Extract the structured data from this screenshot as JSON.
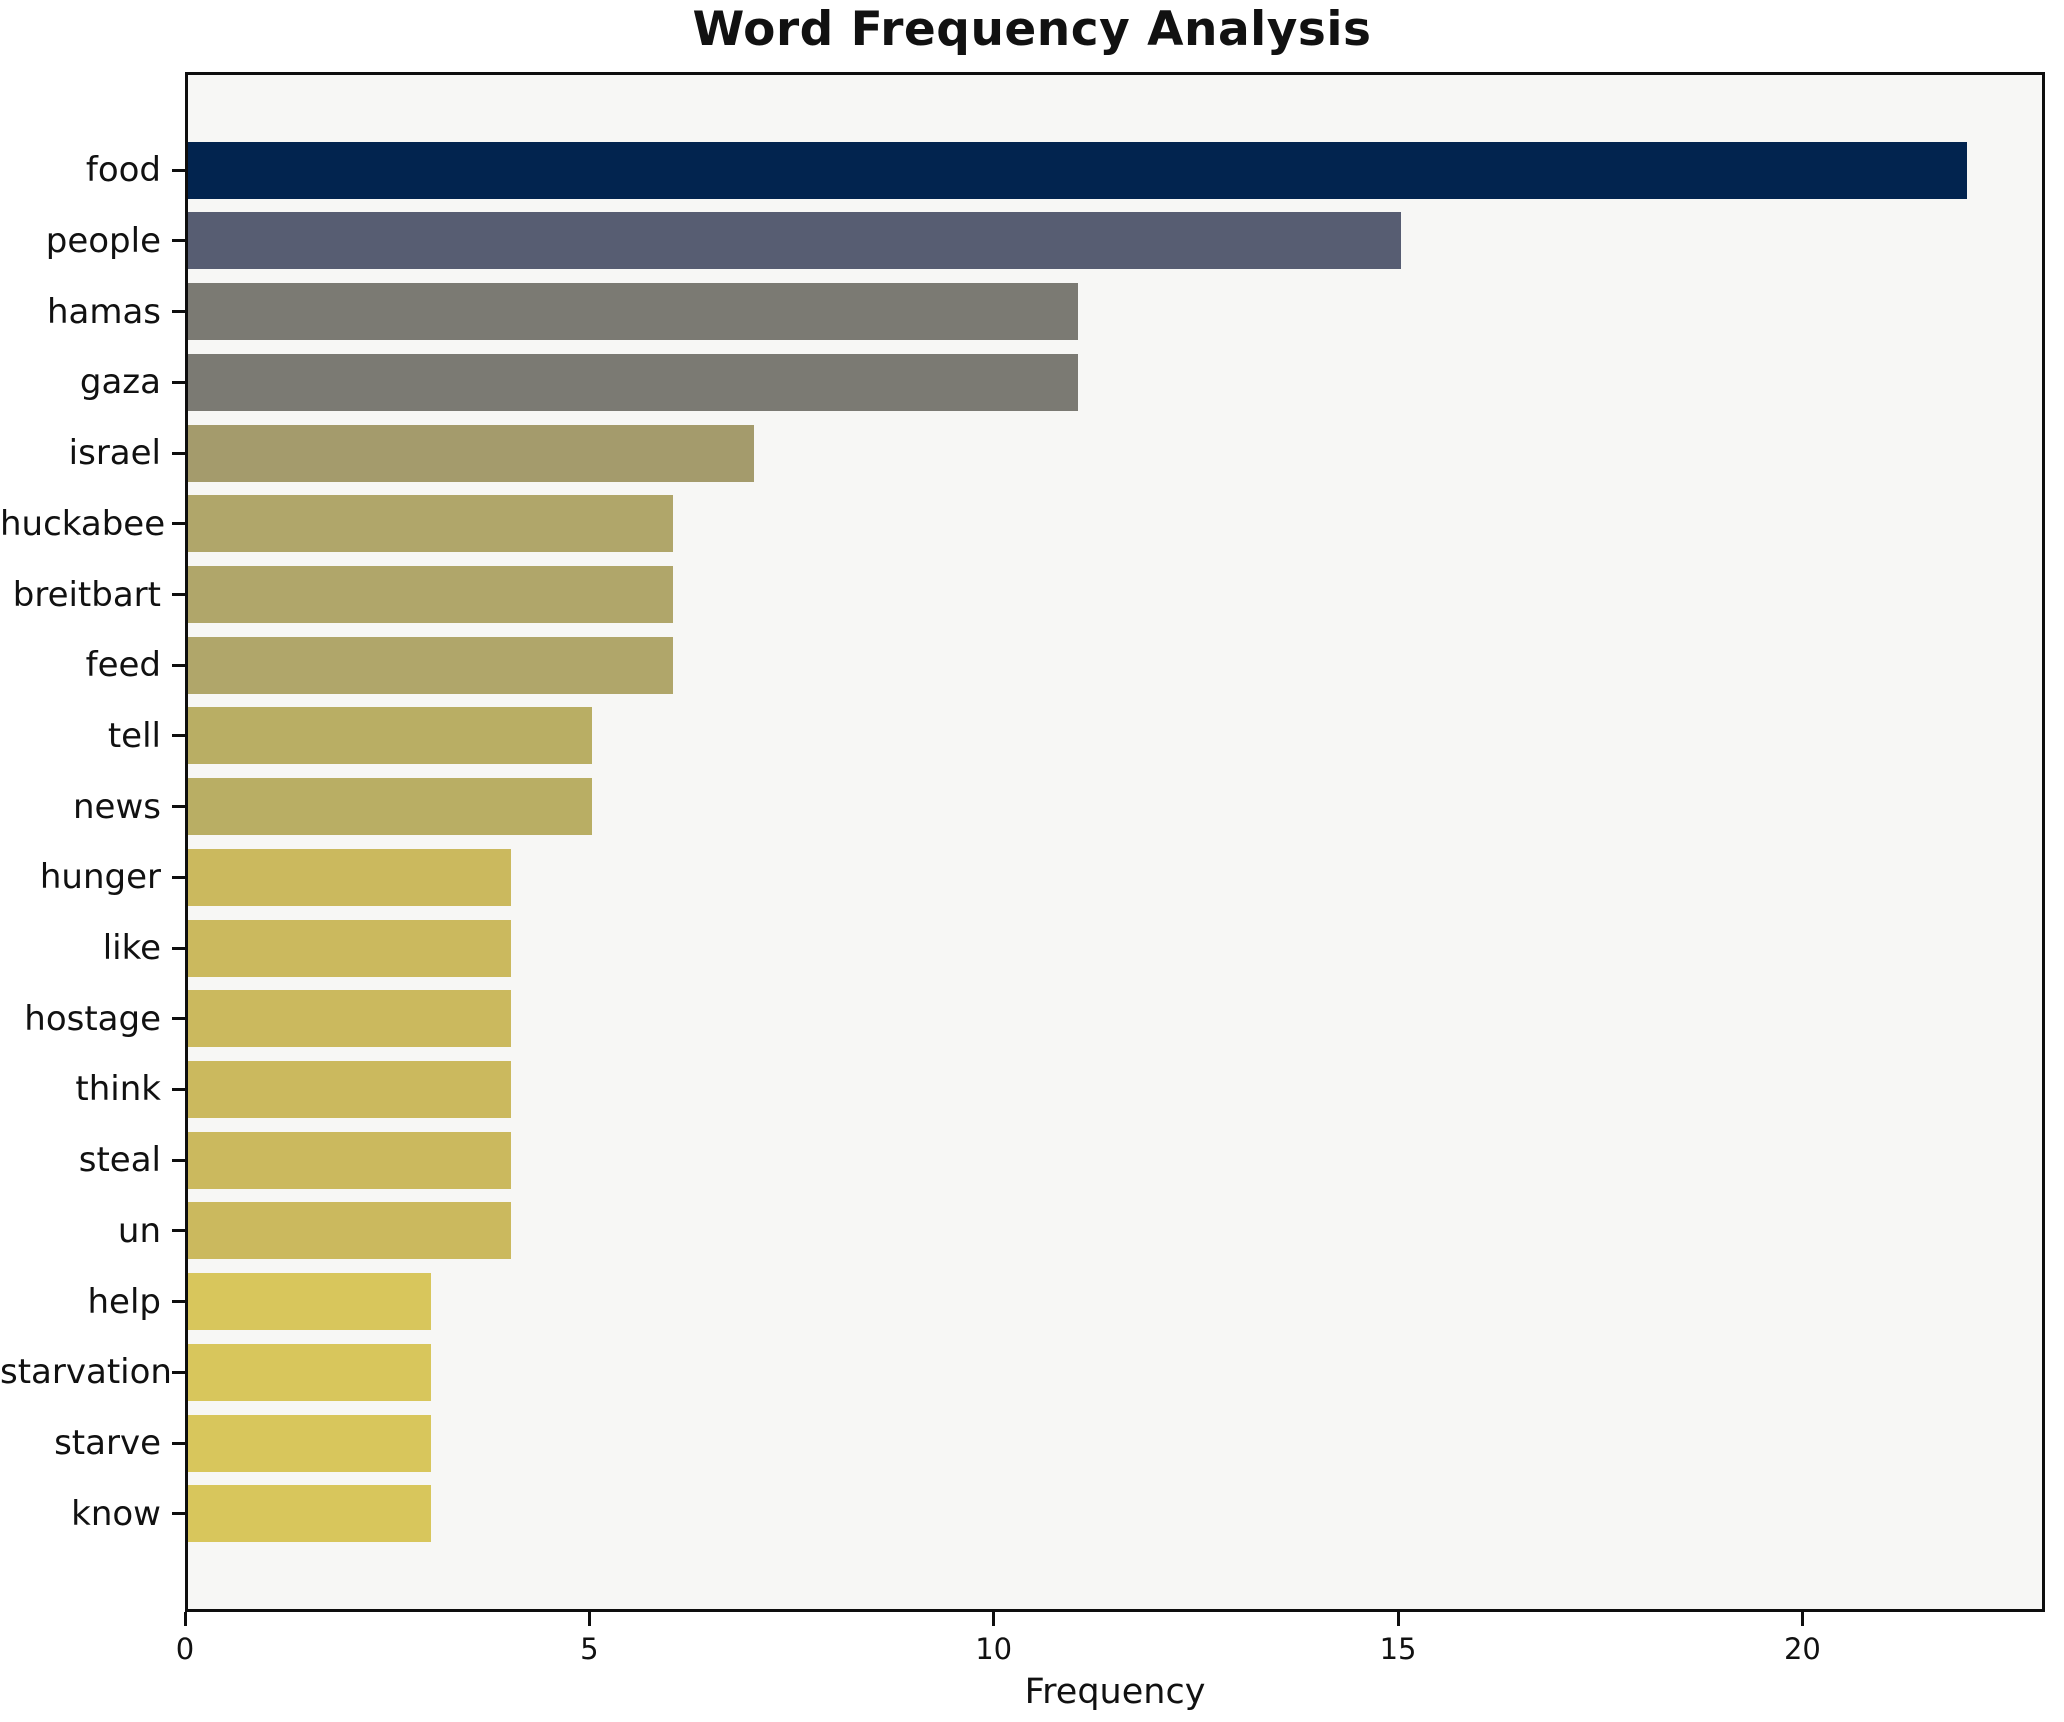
{
  "chart_data": {
    "type": "bar",
    "orientation": "horizontal",
    "title": "Word Frequency Analysis",
    "xlabel": "Frequency",
    "ylabel": "",
    "categories": [
      "food",
      "people",
      "hamas",
      "gaza",
      "israel",
      "huckabee",
      "breitbart",
      "feed",
      "tell",
      "news",
      "hunger",
      "like",
      "hostage",
      "think",
      "steal",
      "un",
      "help",
      "starvation",
      "starve",
      "know"
    ],
    "values": [
      22,
      15,
      11,
      11,
      7,
      6,
      6,
      6,
      5,
      5,
      4,
      4,
      4,
      4,
      4,
      4,
      3,
      3,
      3,
      3
    ],
    "bar_colors": [
      "#02244f",
      "#575d72",
      "#7b7a73",
      "#7b7a73",
      "#a49b6c",
      "#b0a66a",
      "#b0a66a",
      "#b0a66a",
      "#b9ae64",
      "#b9ae64",
      "#cbb95e",
      "#cbb95e",
      "#cbb95e",
      "#cbb95e",
      "#cbb95e",
      "#cbb95e",
      "#d8c65c",
      "#d8c65c",
      "#d8c65c",
      "#d8c65c"
    ],
    "xlim": [
      0,
      23
    ],
    "xticks": [
      0,
      5,
      10,
      15,
      20
    ],
    "grid": false,
    "legend": "none",
    "colormap": "cividis",
    "plot_background": "#f7f7f5",
    "figure_background": "#ffffff",
    "spine_color": "#0e0e0e",
    "text_color": "#111111"
  }
}
